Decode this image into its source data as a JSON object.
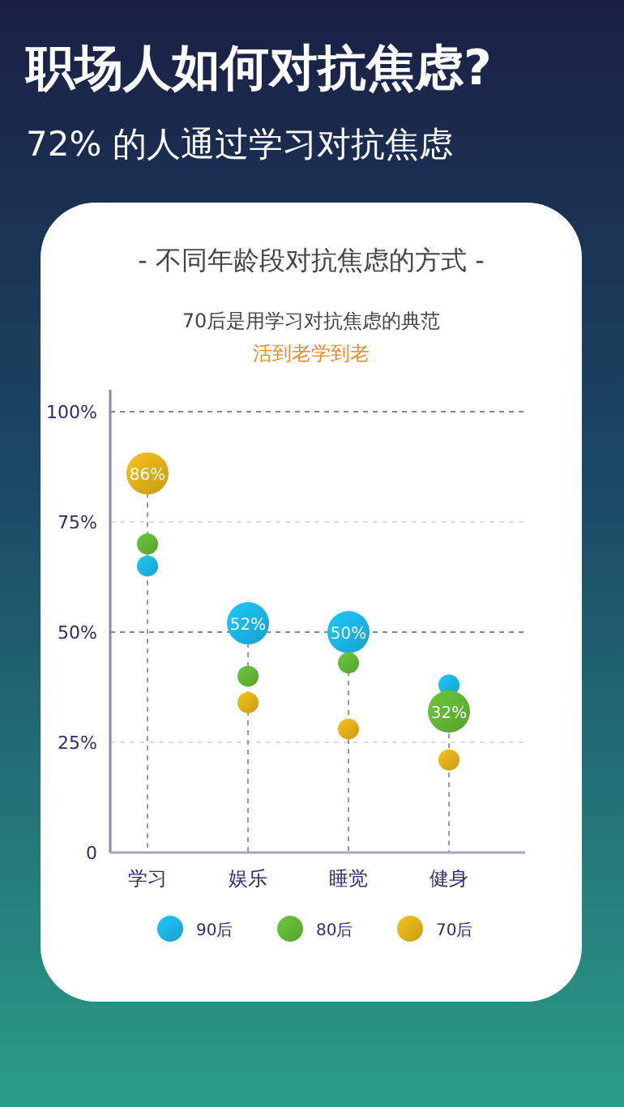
{
  "chart_data": {
    "type": "bubble",
    "title": "职场人如何对抗焦虑?",
    "subtitle": "72% 的人通过学习对抗焦虑",
    "annotations": [
      "- 不同年龄段对抗焦虑的方式 -",
      "70后是用学习对抗焦虑的典范",
      "活到老学到老"
    ],
    "categories": [
      "学习",
      "娱乐",
      "睡觉",
      "健身"
    ],
    "series": [
      {
        "name": "90后",
        "color": "#1ec8ff",
        "values": [
          65,
          52,
          50,
          38
        ],
        "sizes": [
          0.25,
          1,
          1,
          0.25
        ],
        "value_labels": [
          null,
          "52%",
          "50%",
          null
        ]
      },
      {
        "name": "80后",
        "color": "#6cc93a",
        "values": [
          70,
          40,
          43,
          32
        ],
        "sizes": [
          0.25,
          0.25,
          0.25,
          1
        ],
        "value_labels": [
          null,
          null,
          null,
          "32%"
        ]
      },
      {
        "name": "70后",
        "color": "#f9c21b",
        "values": [
          86,
          34,
          28,
          21
        ],
        "sizes": [
          1,
          0.25,
          0.25,
          0.25
        ],
        "value_labels": [
          "86%",
          null,
          null,
          null
        ]
      }
    ],
    "ylim": [
      0,
      105
    ],
    "yticks": [
      0,
      {
        "value": 25,
        "label": "25%"
      },
      {
        "value": 50,
        "label": "50%"
      },
      {
        "value": 75,
        "label": "75%"
      },
      {
        "value": 100,
        "label": "100%"
      }
    ],
    "grid": true,
    "legend": "bottom",
    "marker": "circle"
  }
}
